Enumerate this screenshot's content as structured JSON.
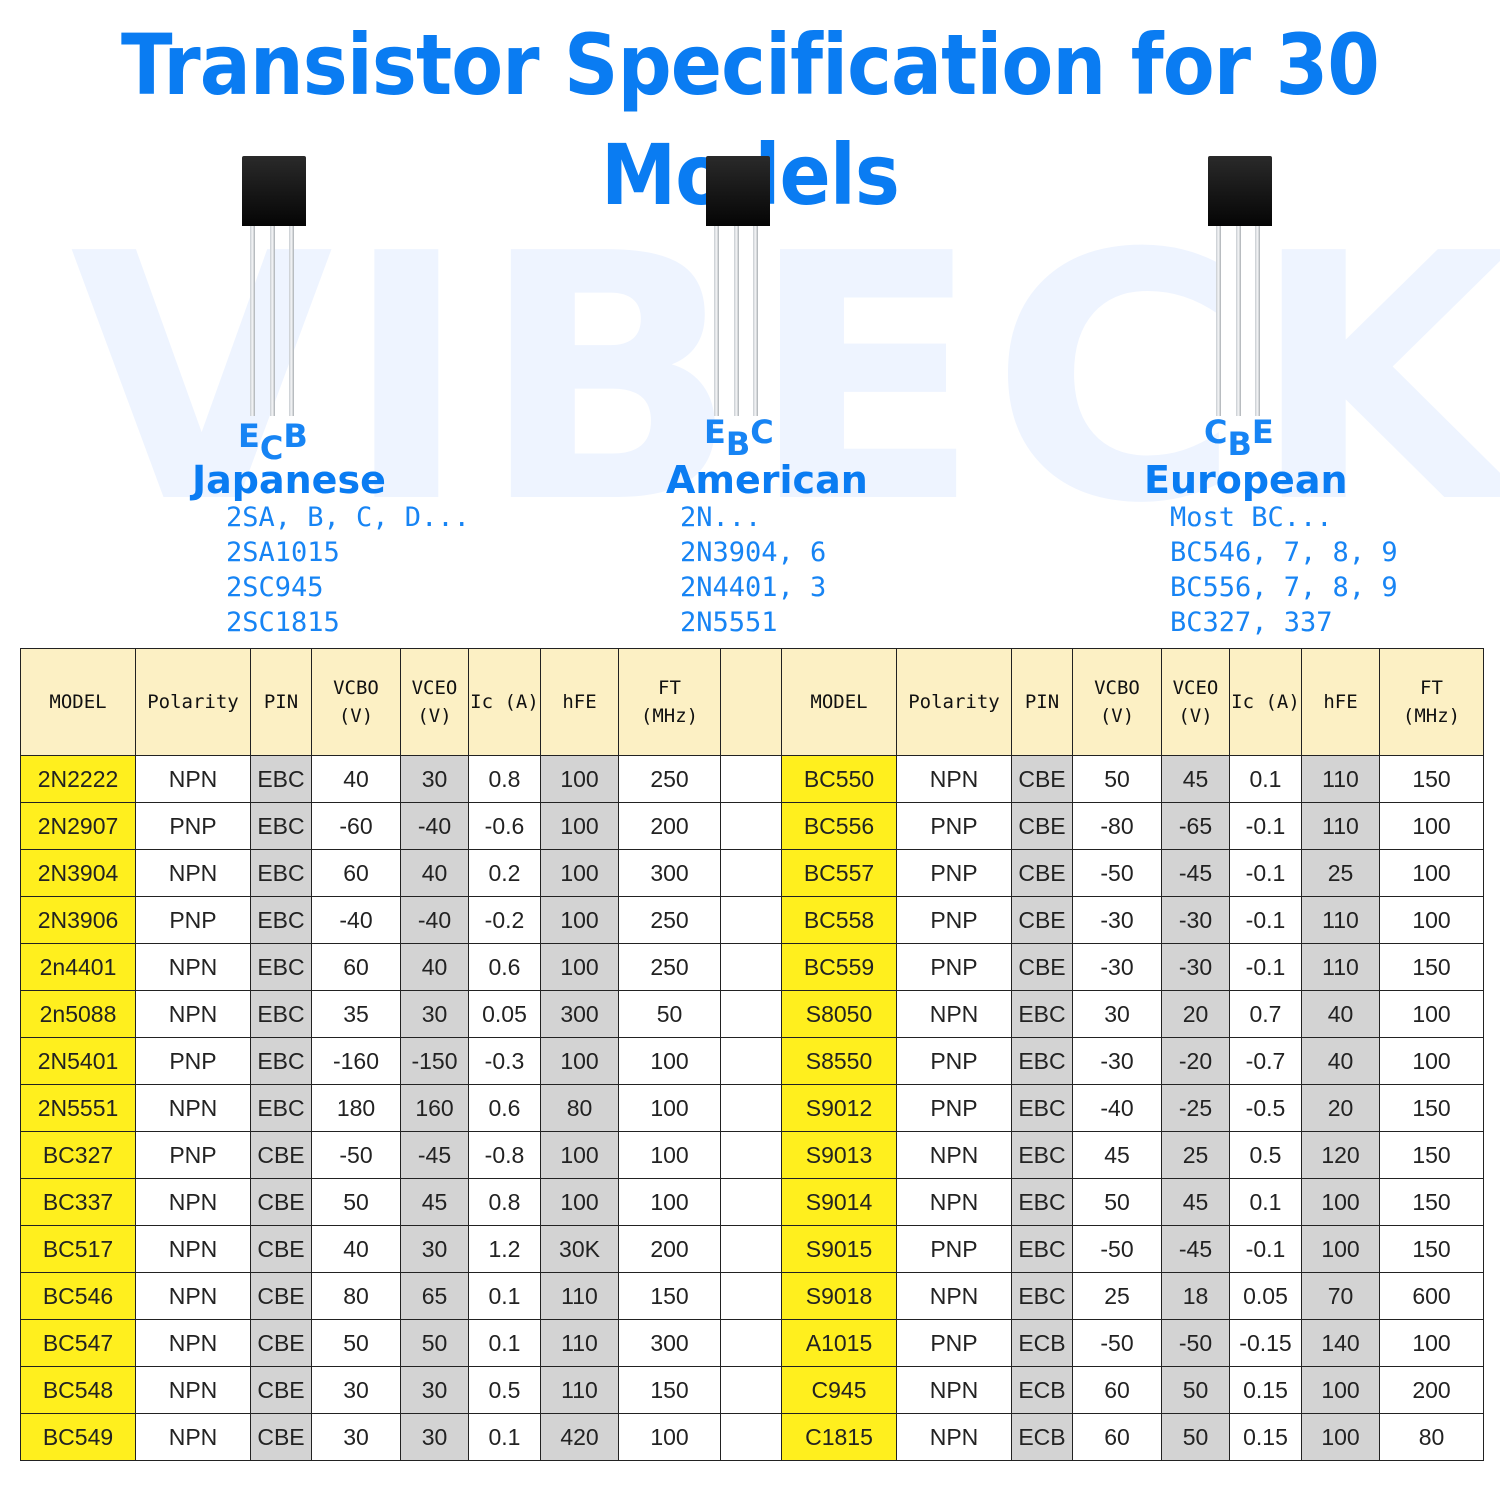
{
  "title": "Transistor Specification for 30 Models",
  "watermark": "VIBECK",
  "groups": [
    {
      "pins": [
        "E",
        "C",
        "B"
      ],
      "family": "Japanese",
      "examples": [
        "2SA, B, C, D...",
        "2SA1015",
        "2SC945",
        "2SC1815"
      ]
    },
    {
      "pins": [
        "E",
        "B",
        "C"
      ],
      "family": "American",
      "examples": [
        "2N...",
        "2N3904, 6",
        "2N4401, 3",
        "2N5551"
      ]
    },
    {
      "pins": [
        "C",
        "B",
        "E"
      ],
      "family": "European",
      "examples": [
        "Most BC...",
        "BC546, 7, 8, 9",
        "BC556, 7, 8, 9",
        "BC327, 337"
      ]
    }
  ],
  "table": {
    "headers": [
      "MODEL",
      "Polarity",
      "PIN",
      "VCBO\n(V)",
      "VCEO\n(V)",
      "Ic (A)",
      "hFE",
      "FT\n(MHz)"
    ],
    "left_rows": [
      [
        "2N2222",
        "NPN",
        "EBC",
        "40",
        "30",
        "0.8",
        "100",
        "250"
      ],
      [
        "2N2907",
        "PNP",
        "EBC",
        "-60",
        "-40",
        "-0.6",
        "100",
        "200"
      ],
      [
        "2N3904",
        "NPN",
        "EBC",
        "60",
        "40",
        "0.2",
        "100",
        "300"
      ],
      [
        "2N3906",
        "PNP",
        "EBC",
        "-40",
        "-40",
        "-0.2",
        "100",
        "250"
      ],
      [
        "2n4401",
        "NPN",
        "EBC",
        "60",
        "40",
        "0.6",
        "100",
        "250"
      ],
      [
        "2n5088",
        "NPN",
        "EBC",
        "35",
        "30",
        "0.05",
        "300",
        "50"
      ],
      [
        "2N5401",
        "PNP",
        "EBC",
        "-160",
        "-150",
        "-0.3",
        "100",
        "100"
      ],
      [
        "2N5551",
        "NPN",
        "EBC",
        "180",
        "160",
        "0.6",
        "80",
        "100"
      ],
      [
        "BC327",
        "PNP",
        "CBE",
        "-50",
        "-45",
        "-0.8",
        "100",
        "100"
      ],
      [
        "BC337",
        "NPN",
        "CBE",
        "50",
        "45",
        "0.8",
        "100",
        "100"
      ],
      [
        "BC517",
        "NPN",
        "CBE",
        "40",
        "30",
        "1.2",
        "30K",
        "200"
      ],
      [
        "BC546",
        "NPN",
        "CBE",
        "80",
        "65",
        "0.1",
        "110",
        "150"
      ],
      [
        "BC547",
        "NPN",
        "CBE",
        "50",
        "50",
        "0.1",
        "110",
        "300"
      ],
      [
        "BC548",
        "NPN",
        "CBE",
        "30",
        "30",
        "0.5",
        "110",
        "150"
      ],
      [
        "BC549",
        "NPN",
        "CBE",
        "30",
        "30",
        "0.1",
        "420",
        "100"
      ]
    ],
    "right_rows": [
      [
        "BC550",
        "NPN",
        "CBE",
        "50",
        "45",
        "0.1",
        "110",
        "150"
      ],
      [
        "BC556",
        "PNP",
        "CBE",
        "-80",
        "-65",
        "-0.1",
        "110",
        "100"
      ],
      [
        "BC557",
        "PNP",
        "CBE",
        "-50",
        "-45",
        "-0.1",
        "25",
        "100"
      ],
      [
        "BC558",
        "PNP",
        "CBE",
        "-30",
        "-30",
        "-0.1",
        "110",
        "100"
      ],
      [
        "BC559",
        "PNP",
        "CBE",
        "-30",
        "-30",
        "-0.1",
        "110",
        "150"
      ],
      [
        "S8050",
        "NPN",
        "EBC",
        "30",
        "20",
        "0.7",
        "40",
        "100"
      ],
      [
        "S8550",
        "PNP",
        "EBC",
        "-30",
        "-20",
        "-0.7",
        "40",
        "100"
      ],
      [
        "S9012",
        "PNP",
        "EBC",
        "-40",
        "-25",
        "-0.5",
        "20",
        "150"
      ],
      [
        "S9013",
        "NPN",
        "EBC",
        "45",
        "25",
        "0.5",
        "120",
        "150"
      ],
      [
        "S9014",
        "NPN",
        "EBC",
        "50",
        "45",
        "0.1",
        "100",
        "150"
      ],
      [
        "S9015",
        "PNP",
        "EBC",
        "-50",
        "-45",
        "-0.1",
        "100",
        "150"
      ],
      [
        "S9018",
        "NPN",
        "EBC",
        "25",
        "18",
        "0.05",
        "70",
        "600"
      ],
      [
        "A1015",
        "PNP",
        "ECB",
        "-50",
        "-50",
        "-0.15",
        "140",
        "100"
      ],
      [
        "C945",
        "NPN",
        "ECB",
        "60",
        "50",
        "0.15",
        "100",
        "200"
      ],
      [
        "C1815",
        "NPN",
        "ECB",
        "60",
        "50",
        "0.15",
        "100",
        "80"
      ]
    ]
  },
  "colors": {
    "title": "#0a7cf2",
    "model_cell": "#ffef1e",
    "header_cell": "#fcf0c4",
    "grey_cell": "#d3d3d3"
  }
}
